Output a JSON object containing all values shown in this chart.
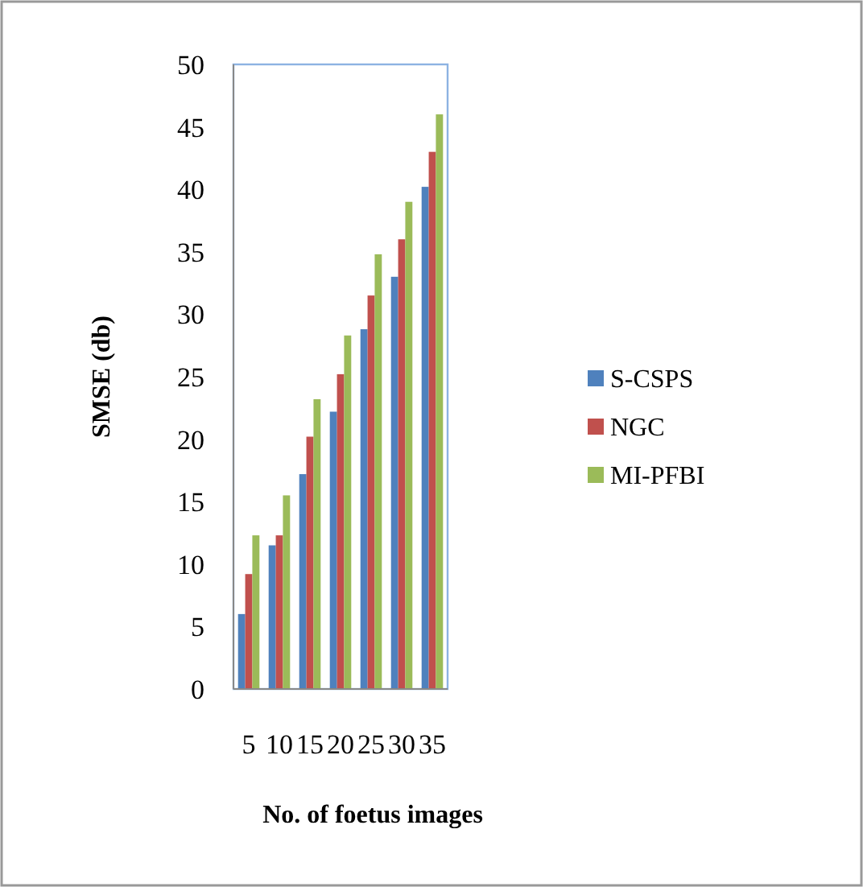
{
  "chart_data": {
    "type": "bar",
    "xlabel": "No. of foetus images",
    "ylabel": "SMSE (db)",
    "categories": [
      "5",
      "10",
      "15",
      "20",
      "25",
      "30",
      "35"
    ],
    "series": [
      {
        "name": "S-CSPS",
        "color": "#4f81bd",
        "values": [
          6,
          11.5,
          17.2,
          22.2,
          28.8,
          33,
          40.2
        ]
      },
      {
        "name": "NGC",
        "color": "#c0504d",
        "values": [
          9.2,
          12.3,
          20.2,
          25.2,
          31.5,
          36,
          43
        ]
      },
      {
        "name": "MI-PFBI",
        "color": "#9bbb59",
        "values": [
          12.3,
          15.5,
          23.2,
          28.3,
          34.8,
          39,
          46
        ]
      }
    ],
    "ylim": [
      0,
      50
    ],
    "yticks": [
      0,
      5,
      10,
      15,
      20,
      25,
      30,
      35,
      40,
      45,
      50
    ],
    "grid": false,
    "legend": "right"
  }
}
